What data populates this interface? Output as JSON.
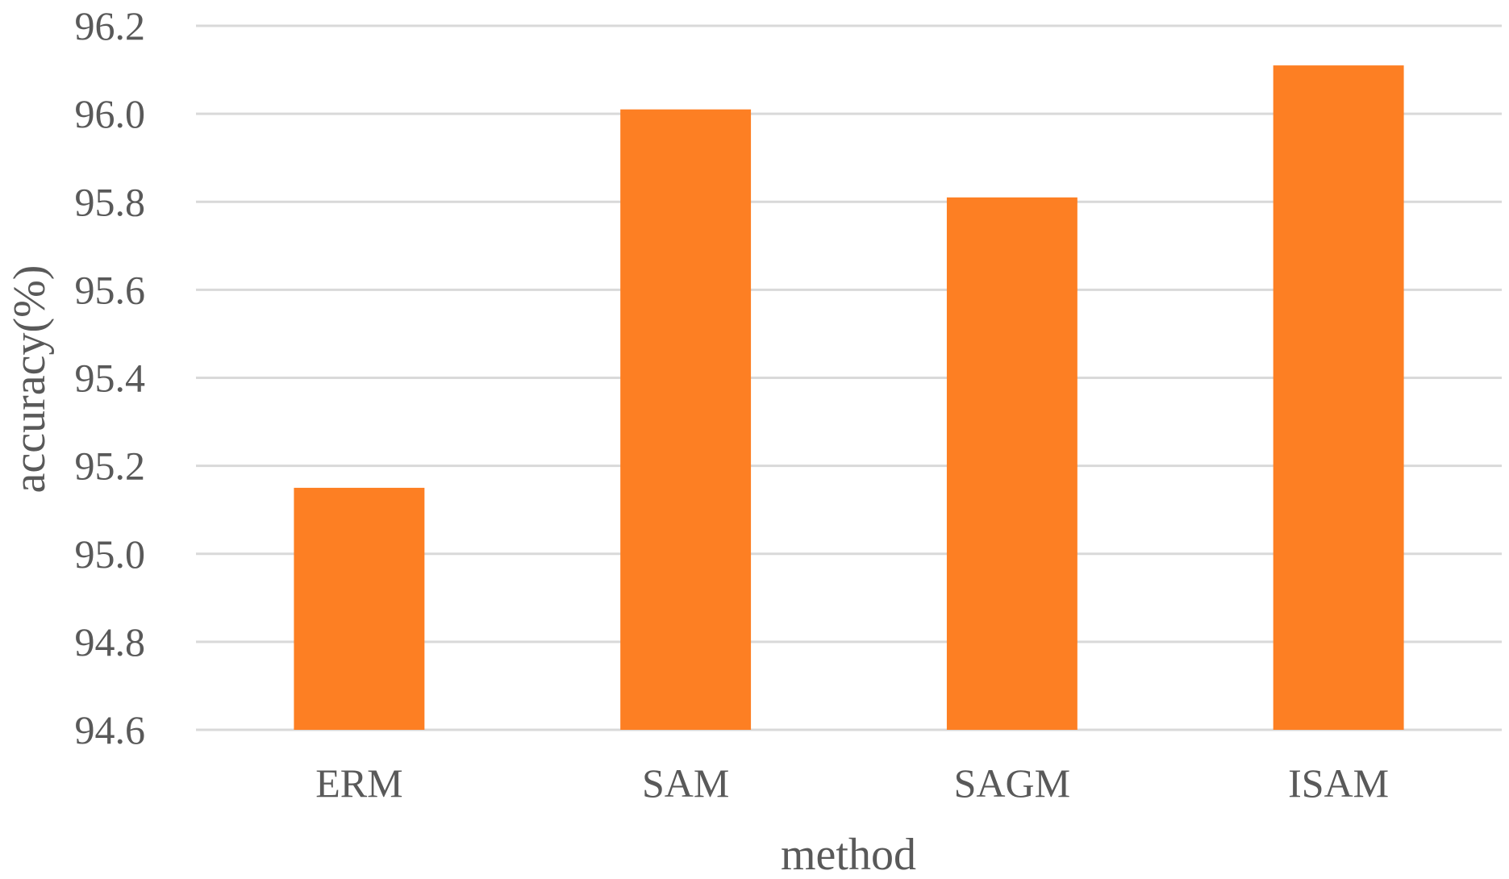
{
  "chart_data": {
    "type": "bar",
    "title": "",
    "xlabel": "method",
    "ylabel": "accuracy(%)",
    "categories": [
      "ERM",
      "SAM",
      "SAGM",
      "ISAM"
    ],
    "values": [
      95.15,
      96.01,
      95.81,
      96.11
    ],
    "ylim": [
      94.6,
      96.2
    ],
    "yticks": [
      "94.6",
      "94.8",
      "95.0",
      "95.2",
      "95.4",
      "95.6",
      "95.8",
      "96.0",
      "96.2"
    ],
    "grid": true,
    "legend": "none",
    "colors": {
      "bar": "#FD7F23",
      "grid": "#D9D9D9",
      "text": "#595959"
    }
  }
}
